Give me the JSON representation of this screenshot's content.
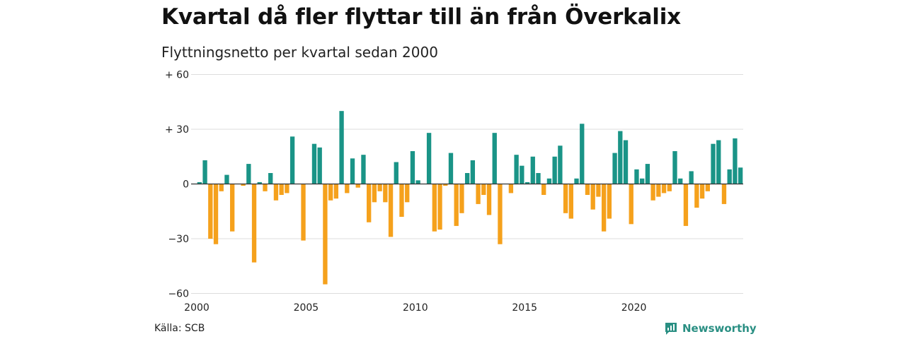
{
  "title": "Kvartal då fler flyttar till än från Överkalix",
  "subtitle": "Flyttningsnetto per kvartal sedan 2000",
  "source": "Källa: SCB",
  "brand": {
    "name": "Newsworthy",
    "icon": "newsworthy-logo-icon"
  },
  "colors": {
    "positive": "#1a9487",
    "negative": "#f5a11c",
    "grid": "#dddddd",
    "axis": "#333333"
  },
  "chart_data": {
    "type": "bar",
    "title": "Kvartal då fler flyttar till än från Överkalix",
    "subtitle": "Flyttningsnetto per kvartal sedan 2000",
    "x_start": "2000-Q1",
    "xticks": [
      "2000",
      "2005",
      "2010",
      "2015",
      "2020"
    ],
    "yticks": [
      "+ 60",
      "+ 30",
      "0",
      "−30",
      "−60"
    ],
    "ylim": [
      -60,
      60
    ],
    "grid": true,
    "values": [
      1,
      13,
      -30,
      -33,
      -4,
      5,
      -26,
      0,
      -1,
      11,
      -43,
      1,
      -4,
      6,
      -9,
      -6,
      -5,
      26,
      0,
      -31,
      0,
      22,
      20,
      -55,
      -9,
      -8,
      40,
      -5,
      14,
      -2,
      16,
      -21,
      -10,
      -4,
      -10,
      -29,
      12,
      -18,
      -10,
      18,
      2,
      0,
      28,
      -26,
      -25,
      -1,
      17,
      -23,
      -16,
      6,
      13,
      -11,
      -6,
      -17,
      28,
      -33,
      0,
      -5,
      16,
      10,
      1,
      15,
      6,
      -6,
      3,
      15,
      21,
      -16,
      -19,
      3,
      33,
      -6,
      -14,
      -7,
      -26,
      -19,
      17,
      29,
      24,
      -22,
      8,
      3,
      11,
      -9,
      -7,
      -5,
      -4,
      18,
      3,
      -23,
      7,
      -13,
      -8,
      -4,
      22,
      24,
      -11,
      8,
      25,
      9
    ]
  }
}
